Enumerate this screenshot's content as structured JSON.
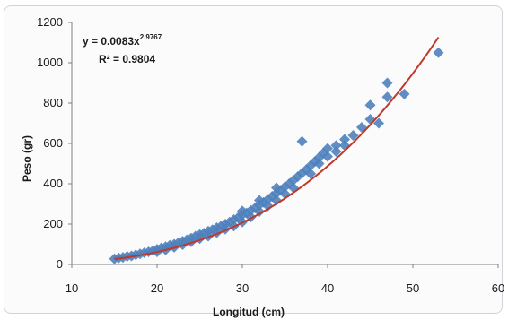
{
  "chart_data": {
    "type": "scatter",
    "title": "",
    "xlabel": "Longitud (cm)",
    "ylabel": "Peso (gr)",
    "xlim": [
      10,
      60
    ],
    "ylim": [
      0,
      1200
    ],
    "x_ticks": [
      10,
      20,
      30,
      40,
      50,
      60
    ],
    "y_ticks": [
      0,
      200,
      400,
      600,
      800,
      1000,
      1200
    ],
    "grid": false,
    "legend": "none",
    "marker_color": "#4f81bd",
    "trendline": {
      "type": "power",
      "a": 0.0083,
      "b": 2.9767,
      "color": "#c0392b",
      "equation_label": "y = 0.0083x",
      "equation_exponent": "2.9767",
      "r2_label": "R² = 0.9804"
    },
    "series": [
      {
        "points": [
          [
            15,
            28
          ],
          [
            15.5,
            32
          ],
          [
            16,
            35
          ],
          [
            16.5,
            40
          ],
          [
            17,
            42
          ],
          [
            17.5,
            48
          ],
          [
            18,
            52
          ],
          [
            18.5,
            58
          ],
          [
            19,
            62
          ],
          [
            19.5,
            68
          ],
          [
            20,
            75
          ],
          [
            20,
            62
          ],
          [
            20.5,
            82
          ],
          [
            21,
            88
          ],
          [
            21,
            72
          ],
          [
            21.5,
            95
          ],
          [
            22,
            100
          ],
          [
            22,
            85
          ],
          [
            22.5,
            108
          ],
          [
            23,
            115
          ],
          [
            23,
            98
          ],
          [
            23.5,
            122
          ],
          [
            24,
            130
          ],
          [
            24,
            112
          ],
          [
            24.5,
            140
          ],
          [
            25,
            148
          ],
          [
            25,
            128
          ],
          [
            25.5,
            155
          ],
          [
            26,
            165
          ],
          [
            26,
            140
          ],
          [
            26.5,
            172
          ],
          [
            27,
            182
          ],
          [
            27,
            158
          ],
          [
            27.5,
            190
          ],
          [
            28,
            200
          ],
          [
            28,
            175
          ],
          [
            28.5,
            210
          ],
          [
            29,
            222
          ],
          [
            29,
            190
          ],
          [
            29.5,
            232
          ],
          [
            30,
            245
          ],
          [
            30,
            210
          ],
          [
            30,
            265
          ],
          [
            30.5,
            255
          ],
          [
            31,
            268
          ],
          [
            31,
            235
          ],
          [
            31.5,
            280
          ],
          [
            32,
            295
          ],
          [
            32,
            262
          ],
          [
            32,
            318
          ],
          [
            32.5,
            308
          ],
          [
            33,
            322
          ],
          [
            33,
            290
          ],
          [
            33.5,
            338
          ],
          [
            34,
            352
          ],
          [
            34,
            318
          ],
          [
            34,
            380
          ],
          [
            34.5,
            368
          ],
          [
            35,
            385
          ],
          [
            35,
            350
          ],
          [
            35.5,
            400
          ],
          [
            36,
            418
          ],
          [
            36,
            380
          ],
          [
            36.5,
            435
          ],
          [
            37,
            452
          ],
          [
            37,
            610
          ],
          [
            37.5,
            470
          ],
          [
            38,
            490
          ],
          [
            38,
            450
          ],
          [
            38.5,
            510
          ],
          [
            39,
            530
          ],
          [
            39,
            500
          ],
          [
            39.5,
            552
          ],
          [
            40,
            575
          ],
          [
            40,
            535
          ],
          [
            41,
            590
          ],
          [
            41,
            560
          ],
          [
            42,
            620
          ],
          [
            42,
            590
          ],
          [
            43,
            640
          ],
          [
            44,
            680
          ],
          [
            45,
            720
          ],
          [
            45,
            790
          ],
          [
            46,
            700
          ],
          [
            47,
            900
          ],
          [
            47,
            830
          ],
          [
            49,
            845
          ],
          [
            53,
            1050
          ]
        ]
      }
    ]
  }
}
